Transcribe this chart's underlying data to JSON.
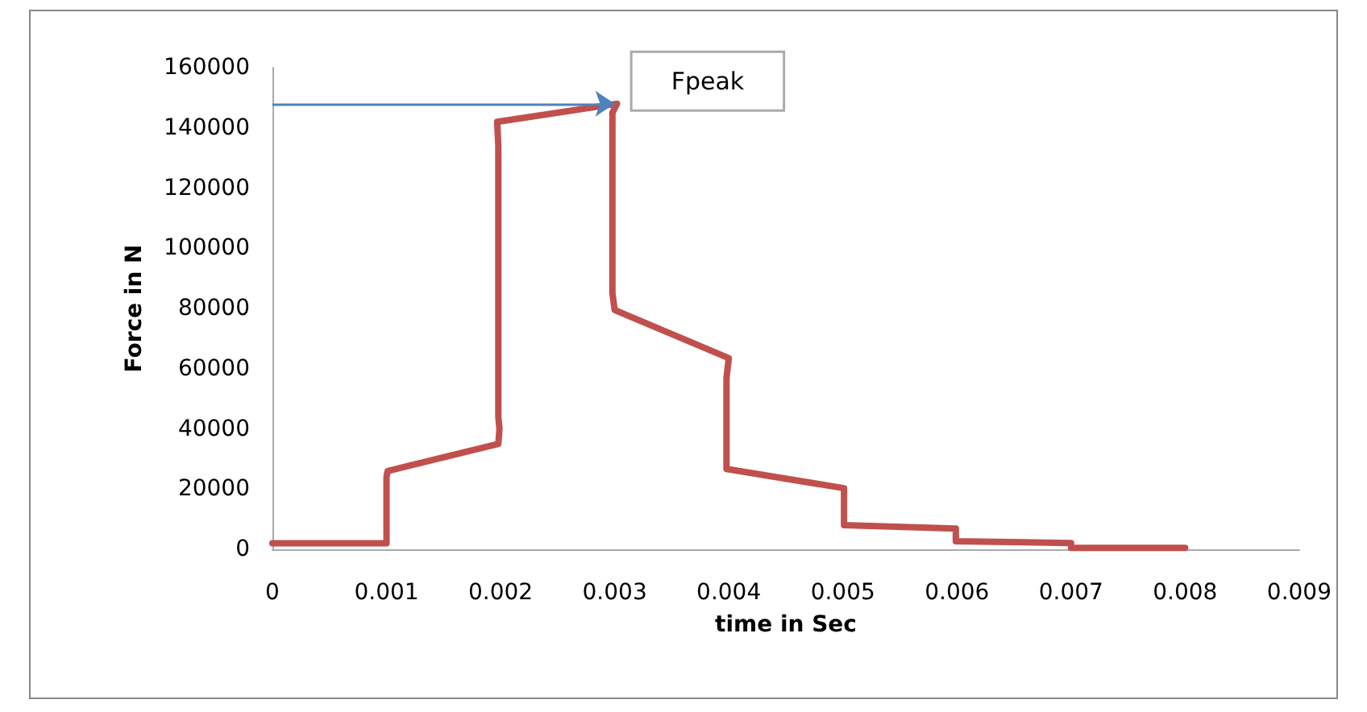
{
  "chart_data": {
    "type": "line",
    "xlabel": "time in Sec",
    "ylabel": "Force in N",
    "xlim": [
      0,
      0.009
    ],
    "xticks": [
      0,
      0.001,
      0.002,
      0.003,
      0.004,
      0.005,
      0.006,
      0.007,
      0.008,
      0.009
    ],
    "ylim": [
      0,
      160000
    ],
    "yticks": [
      0,
      20000,
      40000,
      60000,
      80000,
      100000,
      120000,
      140000,
      160000
    ],
    "grid": false,
    "marker": "none",
    "line_style": "solid",
    "series": [
      {
        "color": "#c0504d",
        "x": [
          0,
          0.001,
          0.001,
          0.00101,
          0.00198,
          0.00199,
          0.00198,
          0.00198,
          0.00197,
          0.00302,
          0.00298,
          0.00298,
          0.003,
          0.004,
          0.00398,
          0.00398,
          0.00501,
          0.00501,
          0.00599,
          0.00599,
          0.007,
          0.007,
          0.008
        ],
        "values": [
          2000,
          2000,
          24000,
          26000,
          35000,
          40000,
          44000,
          134000,
          142000,
          148000,
          145000,
          85000,
          79500,
          63500,
          57000,
          26700,
          20300,
          8000,
          6900,
          2700,
          2100,
          500,
          500
        ]
      }
    ],
    "annotations": [
      {
        "text": "Fpeak",
        "x": 0.003,
        "y": 148000
      }
    ]
  }
}
